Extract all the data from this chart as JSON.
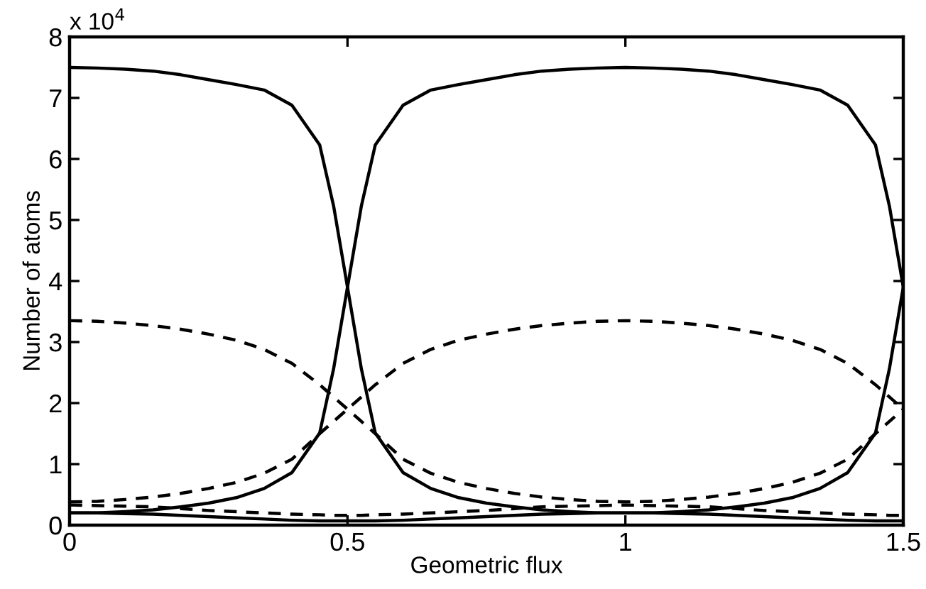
{
  "chart_data": {
    "type": "line",
    "xlabel": "Geometric flux",
    "ylabel": "Number of atoms",
    "annotations": [
      "x 10$^{4}$"
    ],
    "x": [
      0,
      0.05,
      0.1,
      0.15,
      0.2,
      0.25,
      0.3,
      0.35,
      0.4,
      0.45,
      0.475,
      0.5,
      0.525,
      0.55,
      0.6,
      0.65,
      0.7,
      0.75,
      0.8,
      0.85,
      0.9,
      0.95,
      1.0,
      1.05,
      1.1,
      1.15,
      1.2,
      1.25,
      1.3,
      1.35,
      1.4,
      1.45,
      1.475,
      1.5
    ],
    "series": [
      {
        "color": "#000000",
        "line_style": "solid",
        "values": [
          7.5,
          7.49,
          7.47,
          7.44,
          7.38,
          7.3,
          7.22,
          7.13,
          6.88,
          6.23,
          5.23,
          3.9,
          2.56,
          1.51,
          0.86,
          0.6,
          0.45,
          0.36,
          0.3,
          0.25,
          0.22,
          0.2,
          0.2,
          0.2,
          0.22,
          0.25,
          0.3,
          0.36,
          0.45,
          0.6,
          0.86,
          1.51,
          2.56,
          3.9
        ]
      },
      {
        "color": "#000000",
        "line_style": "solid",
        "values": [
          0.2,
          0.2,
          0.22,
          0.25,
          0.3,
          0.36,
          0.45,
          0.6,
          0.86,
          1.51,
          2.56,
          3.9,
          5.23,
          6.23,
          6.88,
          7.13,
          7.22,
          7.3,
          7.38,
          7.44,
          7.47,
          7.49,
          7.5,
          7.49,
          7.47,
          7.44,
          7.38,
          7.3,
          7.22,
          7.13,
          6.88,
          6.23,
          5.23,
          3.9
        ]
      },
      {
        "color": "#000000",
        "line_style": "dashed",
        "values": [
          3.35,
          3.34,
          3.31,
          3.27,
          3.21,
          3.13,
          3.03,
          2.88,
          2.65,
          2.3,
          2.1,
          1.9,
          1.7,
          1.5,
          1.08,
          0.85,
          0.7,
          0.6,
          0.52,
          0.46,
          0.42,
          0.39,
          0.38,
          0.39,
          0.42,
          0.46,
          0.52,
          0.6,
          0.7,
          0.85,
          1.08,
          1.5,
          1.7,
          1.9
        ]
      },
      {
        "color": "#000000",
        "line_style": "dashed",
        "values": [
          0.38,
          0.39,
          0.42,
          0.46,
          0.52,
          0.6,
          0.7,
          0.85,
          1.08,
          1.5,
          1.7,
          1.9,
          2.1,
          2.3,
          2.65,
          2.88,
          3.03,
          3.13,
          3.21,
          3.27,
          3.31,
          3.34,
          3.35,
          3.34,
          3.31,
          3.27,
          3.21,
          3.13,
          3.03,
          2.88,
          2.65,
          2.3,
          2.1,
          1.9
        ]
      },
      {
        "color": "#000000",
        "line_style": "solid",
        "values": [
          0.2,
          0.2,
          0.19,
          0.18,
          0.16,
          0.14,
          0.12,
          0.1,
          0.08,
          0.07,
          0.07,
          0.07,
          0.07,
          0.07,
          0.08,
          0.1,
          0.12,
          0.14,
          0.16,
          0.18,
          0.19,
          0.2,
          0.2,
          0.2,
          0.19,
          0.18,
          0.16,
          0.14,
          0.12,
          0.1,
          0.08,
          0.07,
          0.07,
          0.07
        ]
      },
      {
        "color": "#000000",
        "line_style": "dashed",
        "values": [
          0.33,
          0.32,
          0.31,
          0.3,
          0.27,
          0.24,
          0.22,
          0.2,
          0.18,
          0.17,
          0.16,
          0.16,
          0.16,
          0.17,
          0.18,
          0.2,
          0.22,
          0.24,
          0.27,
          0.3,
          0.31,
          0.32,
          0.33,
          0.32,
          0.31,
          0.3,
          0.27,
          0.24,
          0.22,
          0.2,
          0.18,
          0.17,
          0.16,
          0.16
        ]
      }
    ],
    "xlim": [
      0,
      1.5
    ],
    "ylim": [
      0,
      8
    ],
    "xticks": [
      0,
      0.5,
      1,
      1.5
    ],
    "yticks": [
      0,
      1,
      2,
      3,
      4,
      5,
      6,
      7,
      8
    ],
    "grid": false,
    "marker": "none"
  }
}
